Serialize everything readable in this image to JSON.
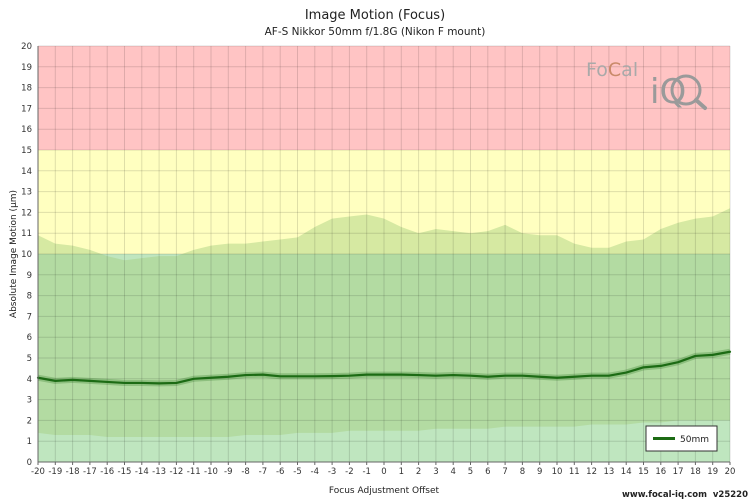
{
  "chart_data": {
    "type": "line",
    "title": "Image Motion (Focus)",
    "subtitle": "AF-S Nikkor 50mm f/1.8G (Nikon F mount)",
    "xlabel": "Focus Adjustment Offset",
    "ylabel": "Absolute Image Motion (µm)",
    "xlim": [
      -20,
      20
    ],
    "ylim": [
      0,
      20
    ],
    "x_ticks": [
      -20,
      -19,
      -18,
      -17,
      -16,
      -15,
      -14,
      -13,
      -12,
      -11,
      -10,
      -9,
      -8,
      -7,
      -6,
      -5,
      -4,
      -3,
      -2,
      -1,
      0,
      1,
      2,
      3,
      4,
      5,
      6,
      7,
      8,
      9,
      10,
      11,
      12,
      13,
      14,
      15,
      16,
      17,
      18,
      19,
      20
    ],
    "y_ticks": [
      0,
      1,
      2,
      3,
      4,
      5,
      6,
      7,
      8,
      9,
      10,
      11,
      12,
      13,
      14,
      15,
      16,
      17,
      18,
      19,
      20
    ],
    "grid": true,
    "zones": [
      {
        "from": 0,
        "to": 10,
        "color": "#bfe6bf"
      },
      {
        "from": 10,
        "to": 15,
        "color": "#ffffc0"
      },
      {
        "from": 15,
        "to": 20,
        "color": "#ffc4c4"
      }
    ],
    "band": {
      "x": [
        -20,
        -19,
        -18,
        -17,
        -16,
        -15,
        -14,
        -13,
        -12,
        -11,
        -10,
        -9,
        -8,
        -7,
        -6,
        -5,
        -4,
        -3,
        -2,
        -1,
        0,
        1,
        2,
        3,
        4,
        5,
        6,
        7,
        8,
        9,
        10,
        11,
        12,
        13,
        14,
        15,
        16,
        17,
        18,
        19,
        20
      ],
      "upper": [
        10.9,
        10.5,
        10.4,
        10.2,
        9.9,
        9.7,
        9.8,
        9.9,
        9.9,
        10.2,
        10.4,
        10.5,
        10.5,
        10.6,
        10.7,
        10.8,
        11.3,
        11.7,
        11.8,
        11.9,
        11.7,
        11.3,
        11.0,
        11.2,
        11.1,
        11.0,
        11.1,
        11.4,
        11.0,
        10.9,
        10.9,
        10.5,
        10.3,
        10.3,
        10.6,
        10.7,
        11.2,
        11.5,
        11.7,
        11.8,
        12.2
      ],
      "lower": [
        1.4,
        1.3,
        1.3,
        1.3,
        1.2,
        1.2,
        1.2,
        1.2,
        1.2,
        1.2,
        1.2,
        1.2,
        1.3,
        1.3,
        1.3,
        1.4,
        1.4,
        1.4,
        1.5,
        1.5,
        1.5,
        1.5,
        1.5,
        1.6,
        1.6,
        1.6,
        1.6,
        1.7,
        1.7,
        1.7,
        1.7,
        1.7,
        1.8,
        1.8,
        1.8,
        1.9,
        1.9,
        2.0,
        2.0,
        2.0,
        2.0
      ],
      "color": "#a5cf7f"
    },
    "series": [
      {
        "name": "50mm",
        "color": "#1c6b14",
        "x": [
          -20,
          -19,
          -18,
          -17,
          -16,
          -15,
          -14,
          -13,
          -12,
          -11,
          -10,
          -9,
          -8,
          -7,
          -6,
          -5,
          -4,
          -3,
          -2,
          -1,
          0,
          1,
          2,
          3,
          4,
          5,
          6,
          7,
          8,
          9,
          10,
          11,
          12,
          13,
          14,
          15,
          16,
          17,
          18,
          19,
          20
        ],
        "values": [
          4.05,
          3.9,
          3.95,
          3.9,
          3.85,
          3.8,
          3.8,
          3.78,
          3.8,
          4.0,
          4.05,
          4.1,
          4.18,
          4.2,
          4.12,
          4.12,
          4.12,
          4.13,
          4.15,
          4.2,
          4.2,
          4.2,
          4.18,
          4.15,
          4.18,
          4.15,
          4.1,
          4.15,
          4.15,
          4.1,
          4.05,
          4.1,
          4.15,
          4.15,
          4.3,
          4.55,
          4.62,
          4.8,
          5.1,
          5.15,
          5.3
        ]
      }
    ],
    "legend_position": "bottom-right"
  },
  "logo": {
    "text_foc": "Fo",
    "text_c": "C",
    "text_al": "al",
    "text_iq": "iQ"
  },
  "footer": {
    "url": "www.focal-iq.com",
    "version": "v25220"
  }
}
